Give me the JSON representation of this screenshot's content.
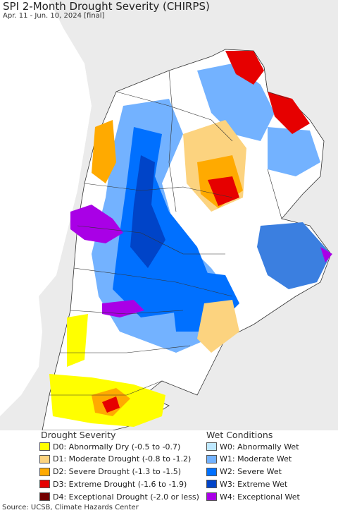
{
  "header": {
    "title": "SPI 2-Month Drought Severity (CHIRPS)",
    "subtitle": "Apr. 11 - Jun. 10, 2024 [final]"
  },
  "legend": {
    "drought": {
      "title": "Drought Severity",
      "items": [
        {
          "label": "D0: Abnormally Dry (-0.5 to -0.7)",
          "color": "#ffff00"
        },
        {
          "label": "D1: Moderate Drought (-0.8 to -1.2)",
          "color": "#fcd37f"
        },
        {
          "label": "D2: Severe Drought (-1.3 to -1.5)",
          "color": "#ffaa00"
        },
        {
          "label": "D3: Extreme Drought (-1.6 to -1.9)",
          "color": "#e60000"
        },
        {
          "label": "D4: Exceptional Drought (-2.0 or less)",
          "color": "#730000"
        }
      ]
    },
    "wet": {
      "title": "Wet Conditions",
      "items": [
        {
          "label": "W0: Abnormally Wet",
          "color": "#bee8ff"
        },
        {
          "label": "W1: Moderate Wet",
          "color": "#73b2ff"
        },
        {
          "label": "W2: Severe Wet",
          "color": "#0070ff"
        },
        {
          "label": "W3: Extreme Wet",
          "color": "#0044c8"
        },
        {
          "label": "W4: Exceptional Wet",
          "color": "#a900e6"
        }
      ]
    }
  },
  "footer": {
    "source": "Source: UCSB, Climate Hazards Center"
  },
  "colors": {
    "ocean": "#ffffff",
    "land_outside": "#ebebeb",
    "land_normal": "#ffffff",
    "borders": "#333333"
  }
}
